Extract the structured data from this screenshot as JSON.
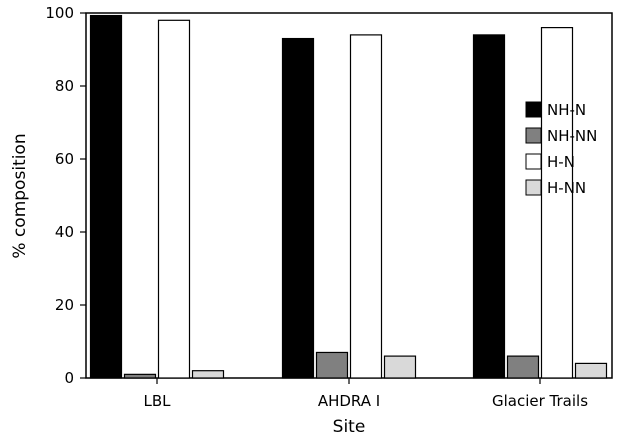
{
  "chart_data": {
    "type": "bar",
    "title": "",
    "xlabel": "Site",
    "ylabel": "% composition",
    "ylim": [
      0,
      100
    ],
    "yticks": [
      0,
      20,
      40,
      60,
      80,
      100
    ],
    "categories": [
      "LBL",
      "AHDRA I",
      "Glacier Trails"
    ],
    "series": [
      {
        "name": "NH-N",
        "color": "#000000",
        "values": [
          99.3,
          93.0,
          94.0
        ]
      },
      {
        "name": "NH-NN",
        "color": "#808080",
        "values": [
          1.0,
          7.0,
          6.0
        ]
      },
      {
        "name": "H-N",
        "color": "#ffffff",
        "values": [
          98.0,
          94.0,
          96.0
        ]
      },
      {
        "name": "H-NN",
        "color": "#d9d9d9",
        "values": [
          2.0,
          6.0,
          4.0
        ]
      }
    ],
    "grid": false,
    "legend_position": "right"
  }
}
